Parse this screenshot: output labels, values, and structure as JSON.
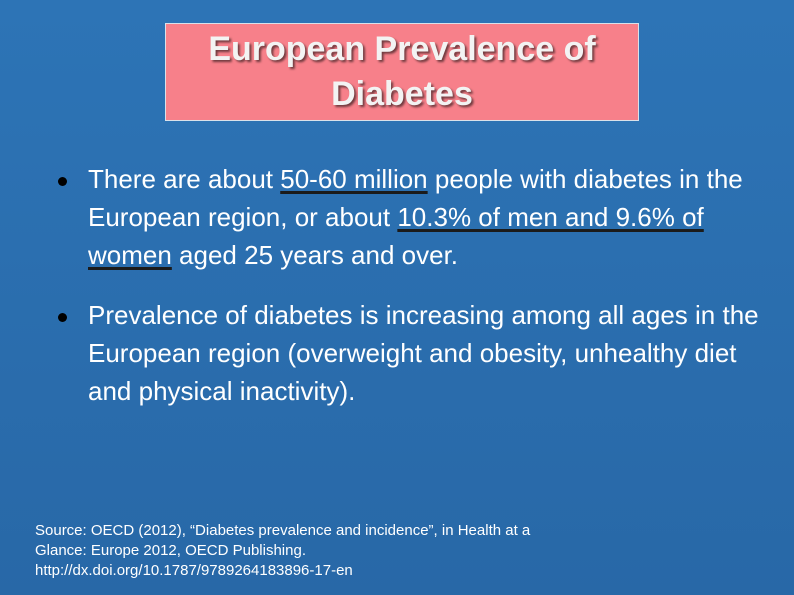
{
  "title": "European Prevalence of Diabetes",
  "bullets": [
    {
      "parts": [
        "There are about ",
        "50-60 million",
        " people with diabetes in the European region, or about ",
        "10.3% of men and 9.6% of women",
        " aged 25 years and over."
      ]
    },
    {
      "text": "Prevalence of diabetes is increasing among all ages in the European region (overweight and obesity, unhealthy diet and physical inactivity)."
    }
  ],
  "source": {
    "line1": "Source: OECD (2012), “Diabetes prevalence and incidence”, in Health at a",
    "line2": "Glance: Europe 2012, OECD Publishing.",
    "line3": "http://dx.doi.org/10.1787/9789264183896-17-en"
  },
  "colors": {
    "background": "#2a6fb0",
    "title_box": "#f7808a",
    "text": "#ffffff"
  }
}
